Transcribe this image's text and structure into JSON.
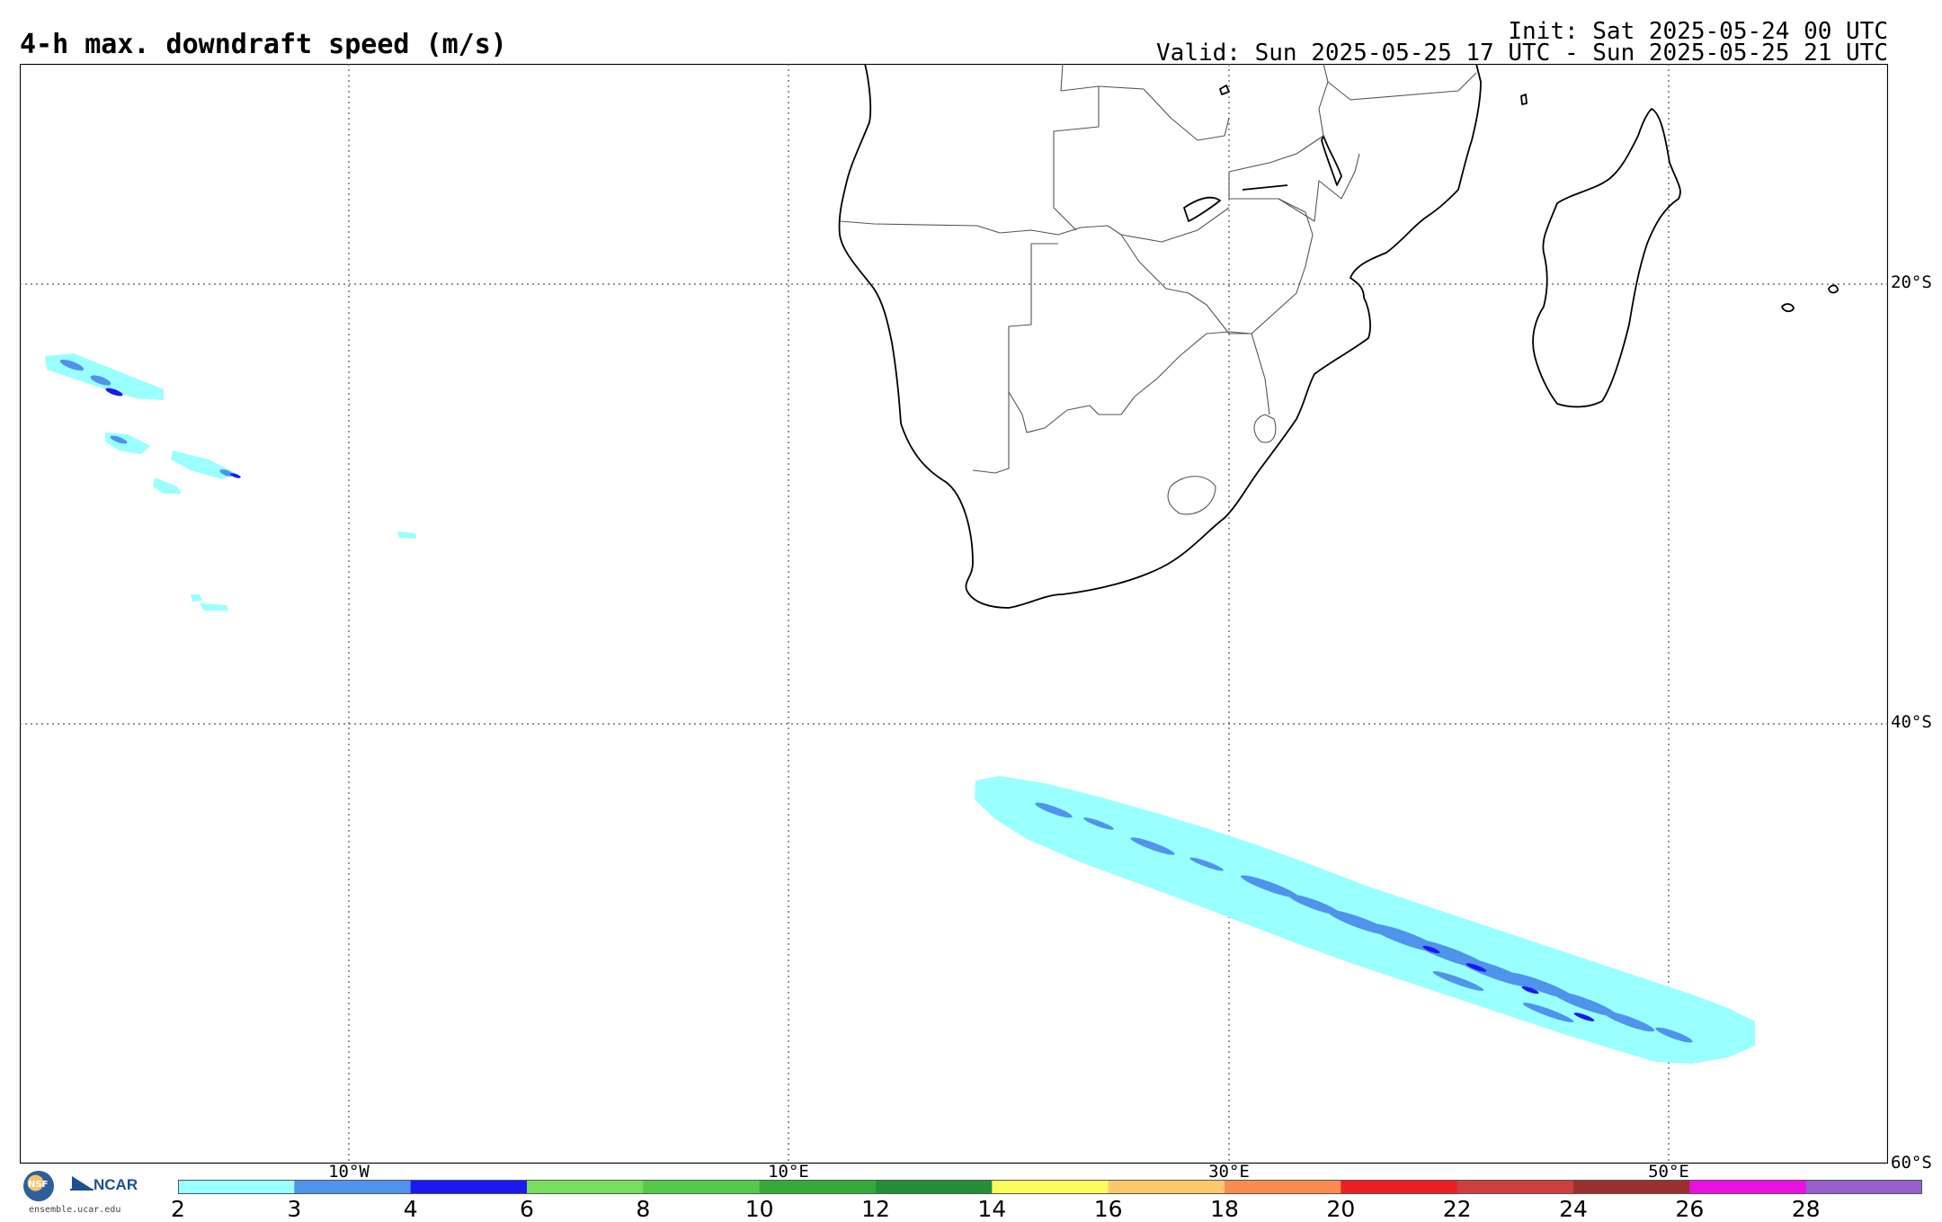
{
  "header": {
    "title": "4-h max. downdraft speed (m/s)",
    "init": "Init: Sat 2025-05-24 00 UTC",
    "valid": "Valid: Sun 2025-05-25 17 UTC - Sun 2025-05-25 21 UTC"
  },
  "map": {
    "region": "Southern Africa and South Atlantic / Indian Ocean",
    "lat_labels": [
      "20°S",
      "40°S",
      "60°S"
    ],
    "lon_labels": [
      "10°W",
      "10°E",
      "30°E",
      "50°E"
    ],
    "gridlines": true,
    "gridline_style": "dotted",
    "coastline_color": "#000000",
    "border_color": "#555555"
  },
  "colorbar": {
    "colors": [
      "#99ffff",
      "#4f93ec",
      "#1b18f0",
      "#76dd5d",
      "#54c94a",
      "#35aa3b",
      "#248f3a",
      "#fbfb5d",
      "#fcc96a",
      "#fa8c4f",
      "#ee1f24",
      "#cd3f3f",
      "#9c2f2f",
      "#e811e0",
      "#965fcb"
    ],
    "tick_labels": [
      "2",
      "3",
      "4",
      "6",
      "8",
      "10",
      "12",
      "14",
      "16",
      "18",
      "20",
      "22",
      "24",
      "26",
      "28"
    ]
  },
  "footer": {
    "logo_nsf": "NSF",
    "logo_ncar": "NCAR",
    "site": "ensemble.ucar.edu"
  }
}
